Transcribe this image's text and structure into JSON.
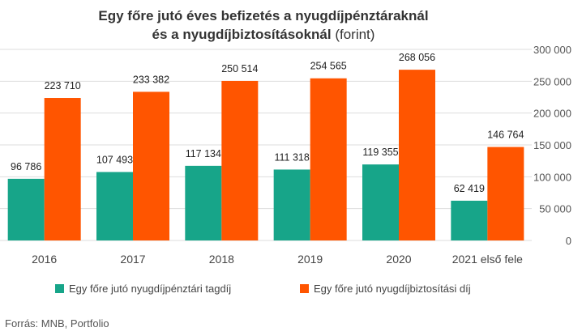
{
  "title": {
    "line1": "Egy főre jutó éves befizetés a nyugdíjpénztáraknál",
    "line2_bold": "és a nyugdíjbiztosításoknál",
    "line2_normal": "(forint)"
  },
  "source": "Forrás: MNB, Portfolio",
  "colors": {
    "series1": "#17a589",
    "series2": "#ff5500",
    "grid": "#dddddd",
    "text": "#333333"
  },
  "chart_data": {
    "type": "bar",
    "categories": [
      "2016",
      "2017",
      "2018",
      "2019",
      "2020",
      "2021 első fele"
    ],
    "series": [
      {
        "name": "Egy főre jutó nyugdíjpénztári tagdíj",
        "values": [
          96786,
          107493,
          117134,
          111318,
          119355,
          62419
        ],
        "labels": [
          "96 786",
          "107 493",
          "117 134",
          "111 318",
          "119 355",
          "62 419"
        ]
      },
      {
        "name": "Egy főre jutó nyugdíjbiztosítási díj",
        "values": [
          223710,
          233382,
          250514,
          254565,
          268056,
          146764
        ],
        "labels": [
          "223 710",
          "233 382",
          "250 514",
          "254 565",
          "268 056",
          "146 764"
        ]
      }
    ],
    "ylim": [
      0,
      300000
    ],
    "yticks": [
      0,
      50000,
      100000,
      150000,
      200000,
      250000,
      300000
    ],
    "ytick_labels": [
      "0",
      "50 000",
      "100 000",
      "150 000",
      "200 000",
      "250 000",
      "300 000"
    ],
    "y_axis_side": "right",
    "grid": true,
    "legend_position": "bottom"
  }
}
